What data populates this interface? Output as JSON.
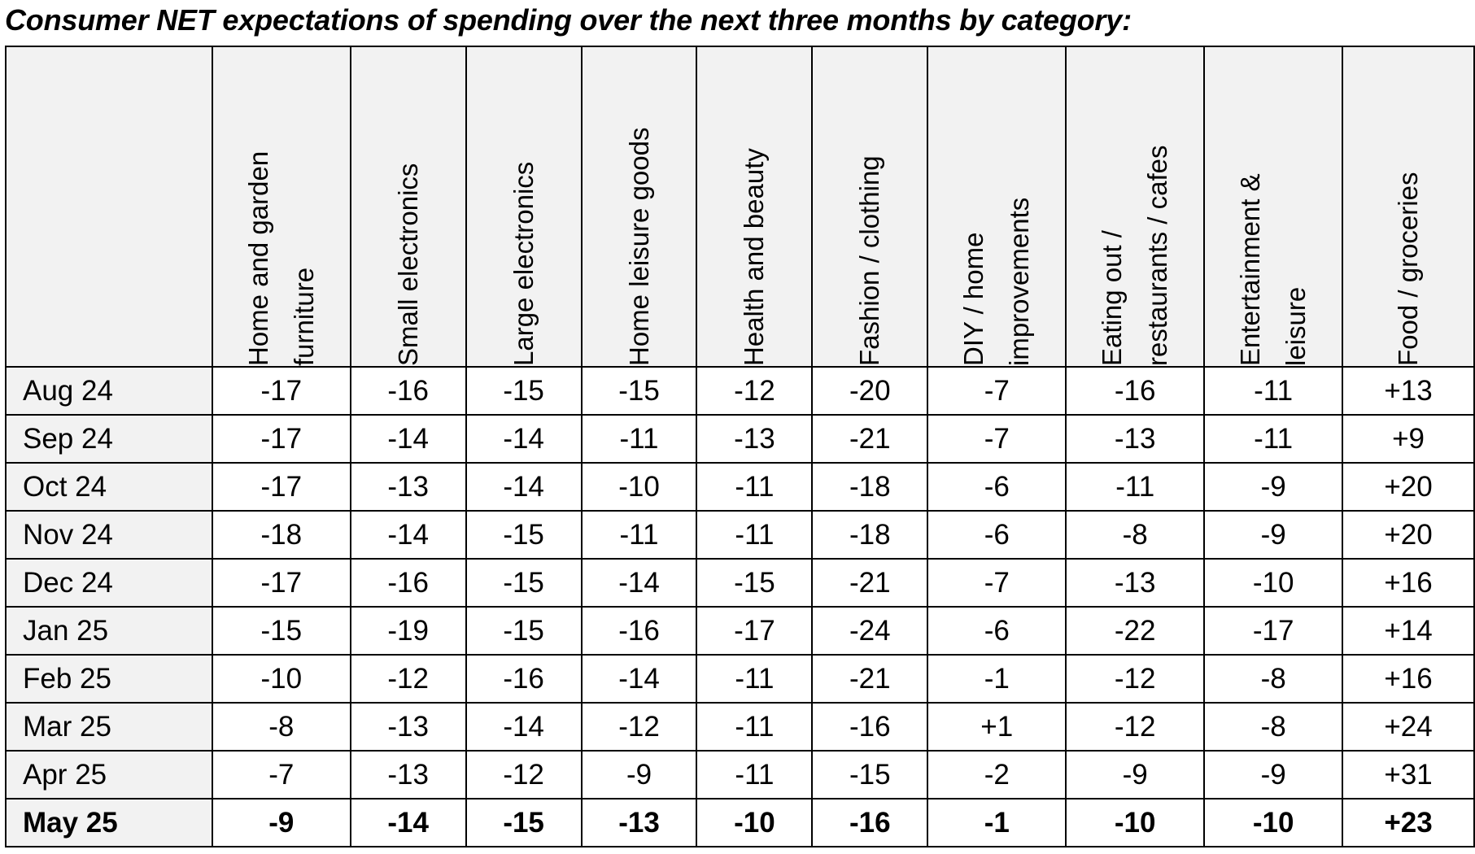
{
  "title": "Consumer NET expectations of spending over the next three months by category:",
  "chart_data": {
    "type": "table",
    "title": "Consumer NET expectations of spending over the next three months by category:",
    "columns": [
      "Home and garden\nfurniture",
      "Small electronics",
      "Large electronics",
      "Home leisure goods",
      "Health and beauty",
      "Fashion / clothing",
      "DIY / home\nimprovements",
      "Eating out /\nrestaurants / cafes",
      "Entertainment &\nleisure",
      "Food / groceries"
    ],
    "rows": [
      {
        "label": "Aug 24",
        "values": [
          "-17",
          "-16",
          "-15",
          "-15",
          "-12",
          "-20",
          "-7",
          "-16",
          "-11",
          "+13"
        ]
      },
      {
        "label": "Sep 24",
        "values": [
          "-17",
          "-14",
          "-14",
          "-11",
          "-13",
          "-21",
          "-7",
          "-13",
          "-11",
          "+9"
        ]
      },
      {
        "label": "Oct 24",
        "values": [
          "-17",
          "-13",
          "-14",
          "-10",
          "-11",
          "-18",
          "-6",
          "-11",
          "-9",
          "+20"
        ]
      },
      {
        "label": "Nov 24",
        "values": [
          "-18",
          "-14",
          "-15",
          "-11",
          "-11",
          "-18",
          "-6",
          "-8",
          "-9",
          "+20"
        ]
      },
      {
        "label": "Dec 24",
        "values": [
          "-17",
          "-16",
          "-15",
          "-14",
          "-15",
          "-21",
          "-7",
          "-13",
          "-10",
          "+16"
        ]
      },
      {
        "label": "Jan 25",
        "values": [
          "-15",
          "-19",
          "-15",
          "-16",
          "-17",
          "-24",
          "-6",
          "-22",
          "-17",
          "+14"
        ]
      },
      {
        "label": "Feb 25",
        "values": [
          "-10",
          "-12",
          "-16",
          "-14",
          "-11",
          "-21",
          "-1",
          "-12",
          "-8",
          "+16"
        ]
      },
      {
        "label": "Mar 25",
        "values": [
          "-8",
          "-13",
          "-14",
          "-12",
          "-11",
          "-16",
          "+1",
          "-12",
          "-8",
          "+24"
        ]
      },
      {
        "label": "Apr 25",
        "values": [
          "-7",
          "-13",
          "-12",
          "-9",
          "-11",
          "-15",
          "-2",
          "-9",
          "-9",
          "+31"
        ]
      },
      {
        "label": "May 25",
        "values": [
          "-9",
          "-14",
          "-15",
          "-13",
          "-10",
          "-16",
          "-1",
          "-10",
          "-10",
          "+23"
        ]
      }
    ]
  }
}
